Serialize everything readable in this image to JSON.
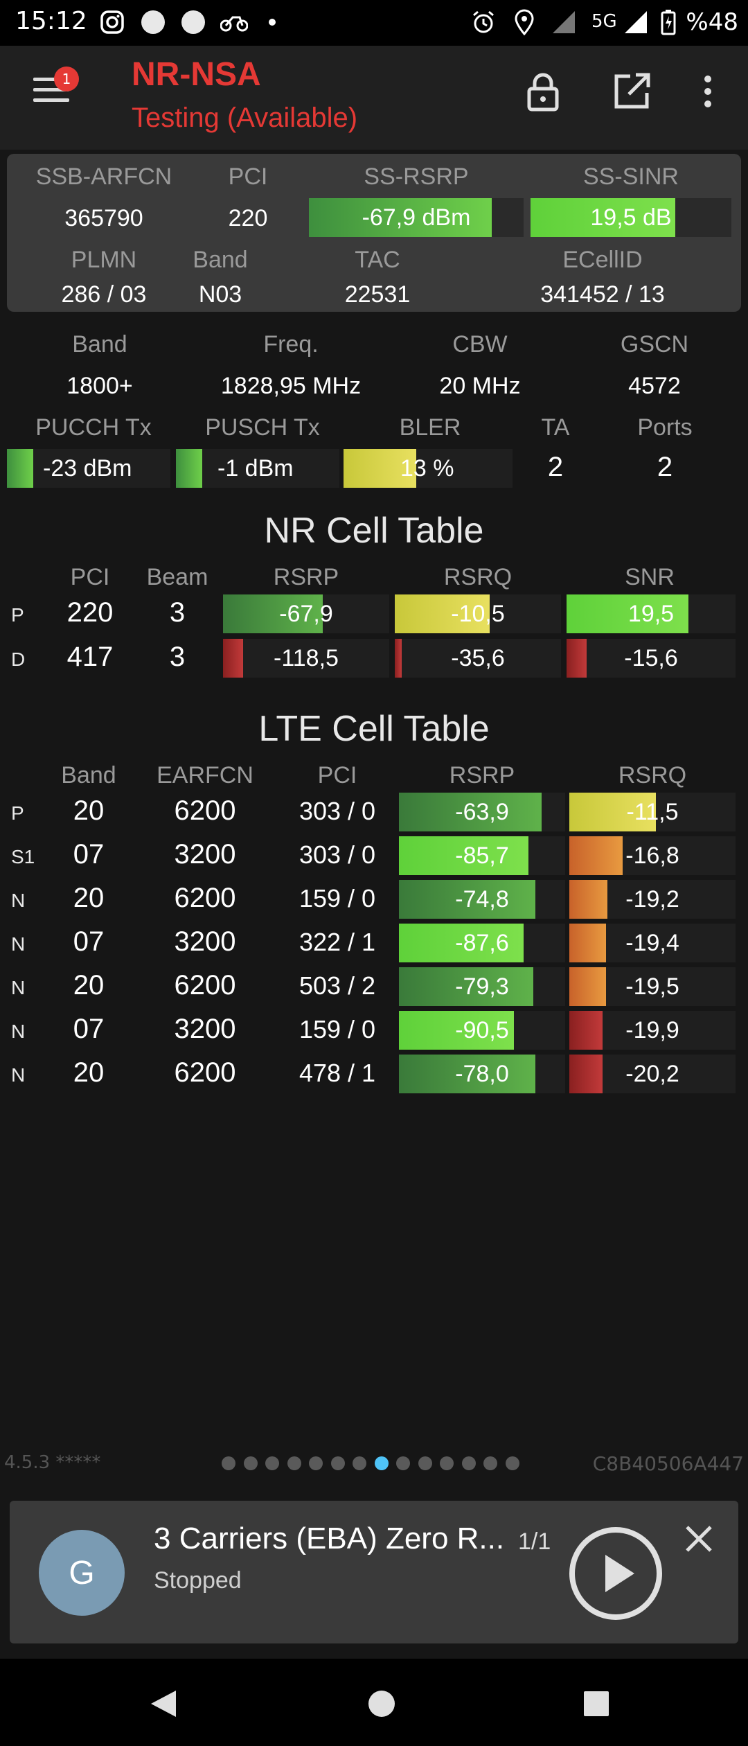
{
  "status_bar": {
    "time": "15:12",
    "network": "5G",
    "battery": "%48",
    "icons": [
      "instagram-icon",
      "circle-icon",
      "circle-icon",
      "bike-icon",
      "dot-icon",
      "alarm-icon",
      "location-icon",
      "signal-icon",
      "signal-icon",
      "battery-icon"
    ]
  },
  "toolbar": {
    "title": "NR-NSA",
    "subtitle": "Testing (Available)",
    "badge": "1",
    "icons": [
      "menu-icon",
      "lock-icon",
      "open-external-icon",
      "more-vert-icon"
    ]
  },
  "summary": {
    "headers1": [
      "SSB-ARFCN",
      "PCI",
      "SS-RSRP",
      "SS-SINR"
    ],
    "ssb_arfcn": "365790",
    "pci": "220",
    "ss_rsrp": "-67,9 dBm",
    "ss_rsrp_level": 0.85,
    "ss_sinr": "19,5 dB",
    "ss_sinr_level": 0.72,
    "headers2": [
      "PLMN",
      "Band",
      "TAC",
      "ECellID"
    ],
    "plmn": "286 / 03",
    "band": "N03",
    "tac": "22531",
    "ecellid": "341452 / 13"
  },
  "radio": {
    "headers1": [
      "Band",
      "Freq.",
      "CBW",
      "GSCN"
    ],
    "band": "1800+",
    "freq": "1828,95 MHz",
    "cbw": "20 MHz",
    "gscn": "4572",
    "headers2": [
      "PUCCH Tx",
      "PUSCH Tx",
      "BLER",
      "TA",
      "Ports"
    ],
    "pucch_tx": "-23 dBm",
    "pucch_level": 0.16,
    "pusch_tx": "-1 dBm",
    "pusch_level": 0.16,
    "bler": "13 %",
    "bler_level": 0.43,
    "ta": "2",
    "ports": "2"
  },
  "nr_table": {
    "title": "NR Cell Table",
    "headers": [
      "PCI",
      "Beam",
      "RSRP",
      "RSRQ",
      "SNR"
    ],
    "rows": [
      {
        "tag": "P",
        "pci": "220",
        "beam": "3",
        "rsrp": "-67,9",
        "rsrp_level": 0.6,
        "rsrq": "-10,5",
        "rsrq_level": 0.57,
        "snr": "19,5",
        "snr_level": 0.72
      },
      {
        "tag": "D",
        "pci": "417",
        "beam": "3",
        "rsrp": "-118,5",
        "rsrp_level": 0.12,
        "rsrq": "-35,6",
        "rsrq_level": 0.04,
        "snr": "-15,6",
        "snr_level": 0.12
      }
    ]
  },
  "lte_table": {
    "title": "LTE Cell Table",
    "headers": [
      "Band",
      "EARFCN",
      "PCI",
      "RSRP",
      "RSRQ"
    ],
    "rows": [
      {
        "tag": "P",
        "band": "20",
        "earfcn": "6200",
        "pci": "303 / 0",
        "rsrp": "-63,9",
        "rsrp_level": 0.86,
        "rsrq": "-11,5",
        "rsrq_level": 0.52
      },
      {
        "tag": "S1",
        "band": "07",
        "earfcn": "3200",
        "pci": "303 / 0",
        "rsrp": "-85,7",
        "rsrp_level": 0.78,
        "rsrq": "-16,8",
        "rsrq_level": 0.32
      },
      {
        "tag": "N",
        "band": "20",
        "earfcn": "6200",
        "pci": "159 / 0",
        "rsrp": "-74,8",
        "rsrp_level": 0.82,
        "rsrq": "-19,2",
        "rsrq_level": 0.23
      },
      {
        "tag": "N",
        "band": "07",
        "earfcn": "3200",
        "pci": "322 / 1",
        "rsrp": "-87,6",
        "rsrp_level": 0.75,
        "rsrq": "-19,4",
        "rsrq_level": 0.22
      },
      {
        "tag": "N",
        "band": "20",
        "earfcn": "6200",
        "pci": "503 / 2",
        "rsrp": "-79,3",
        "rsrp_level": 0.81,
        "rsrq": "-19,5",
        "rsrq_level": 0.22
      },
      {
        "tag": "N",
        "band": "07",
        "earfcn": "3200",
        "pci": "159 / 0",
        "rsrp": "-90,5",
        "rsrp_level": 0.69,
        "rsrq": "-19,9",
        "rsrq_level": 0.2
      },
      {
        "tag": "N",
        "band": "20",
        "earfcn": "6200",
        "pci": "478 / 1",
        "rsrp": "-78,0",
        "rsrp_level": 0.82,
        "rsrq": "-20,2",
        "rsrq_level": 0.2
      }
    ]
  },
  "footer": {
    "version": "4.5.3 *****",
    "device_id": "C8B40506A447",
    "page_count": 14,
    "active_page": 8
  },
  "player": {
    "avatar_letter": "G",
    "title": "3 Carriers (EBA) Zero R...",
    "count": "1/1",
    "status": "Stopped"
  },
  "nav": {
    "icons": [
      "back-icon",
      "home-icon",
      "recents-icon"
    ]
  },
  "colors": {
    "accent": "#e53935",
    "green": "#5fd13a",
    "yellow": "#d8e04a",
    "orange": "#e07a2e",
    "red": "#b02a2a"
  }
}
